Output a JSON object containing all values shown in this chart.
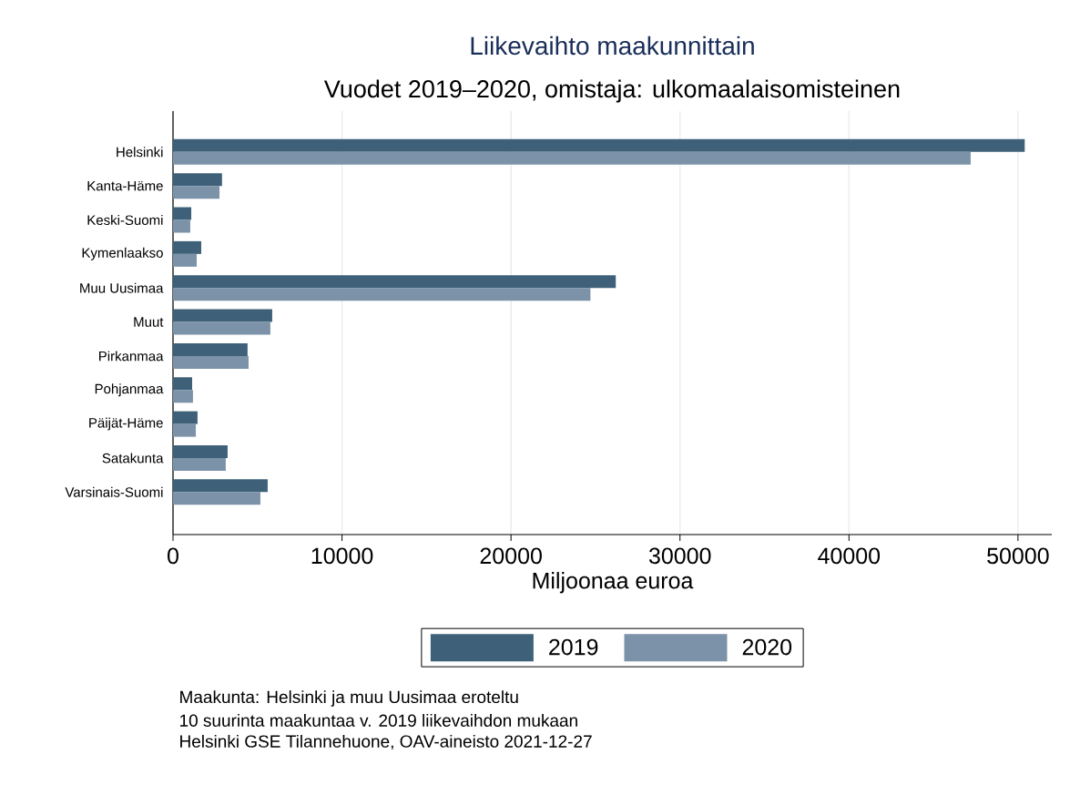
{
  "chart_data": {
    "type": "bar",
    "orientation": "horizontal",
    "title": "Liikevaihto maakunnittain",
    "subtitle": "Vuodet 2019–2020, omistaja: ulkomaalaisomisteinen",
    "xlabel": "Miljoonaa euroa",
    "categories": [
      "Helsinki",
      "Kanta-Häme",
      "Keski-Suomi",
      "Kymenlaakso",
      "Muu Uusimaa",
      "Muut",
      "Pirkanmaa",
      "Pohjanmaa",
      "Päijät-Häme",
      "Satakunta",
      "Varsinais-Suomi"
    ],
    "series": [
      {
        "name": "2019",
        "color": "#3e6179",
        "values": [
          50400,
          2900,
          1080,
          1670,
          26200,
          5870,
          4410,
          1130,
          1450,
          3230,
          5600
        ]
      },
      {
        "name": "2020",
        "color": "#7b92a8",
        "values": [
          47200,
          2750,
          1020,
          1400,
          24700,
          5760,
          4470,
          1180,
          1350,
          3120,
          5170
        ]
      }
    ],
    "xlim": [
      0,
      52000
    ],
    "xticks": [
      0,
      10000,
      20000,
      30000,
      40000,
      50000
    ],
    "grid": "x",
    "legend": "bottom",
    "annotations": [
      "Maakunta: Helsinki ja muu Uusimaa eroteltu",
      "10 suurinta maakuntaa v. 2019 liikevaihdon mukaan",
      "Helsinki GSE Tilannehuone, OAV-aineisto 2021-12-27"
    ]
  }
}
